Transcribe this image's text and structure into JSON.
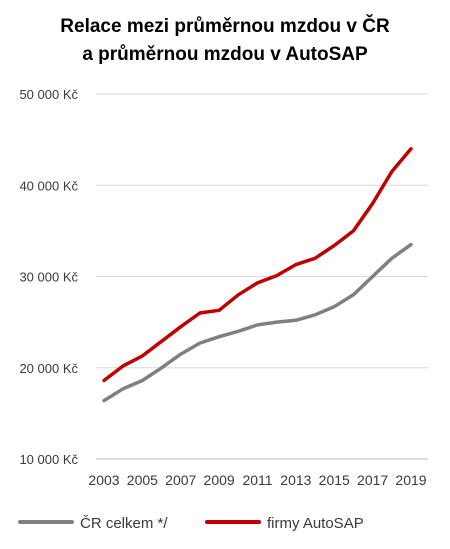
{
  "chart_data": {
    "type": "line",
    "title_lines": [
      "Relace mezi průměrnou mzdou v ČR",
      "a průměrnou mzdou v AutoSAP"
    ],
    "y_ticks": [
      {
        "value": 10000,
        "label": "10 000 Kč"
      },
      {
        "value": 20000,
        "label": "20 000 Kč"
      },
      {
        "value": 30000,
        "label": "30 000 Kč"
      },
      {
        "value": 40000,
        "label": "40 000 Kč"
      },
      {
        "value": 50000,
        "label": "50 000 Kč"
      }
    ],
    "ylim": [
      10000,
      50000
    ],
    "x_ticks": [
      {
        "value": 2003,
        "label": "2003"
      },
      {
        "value": 2005,
        "label": "2005"
      },
      {
        "value": 2007,
        "label": "2007"
      },
      {
        "value": 2009,
        "label": "2009"
      },
      {
        "value": 2011,
        "label": "2011"
      },
      {
        "value": 2013,
        "label": "2013"
      },
      {
        "value": 2015,
        "label": "2015"
      },
      {
        "value": 2017,
        "label": "2017"
      },
      {
        "value": 2019,
        "label": "2019"
      }
    ],
    "xlim": [
      2003,
      2019
    ],
    "grid": "horizontal",
    "legend_position": "bottom",
    "series": [
      {
        "name": "ČR celkem */",
        "color": "#808080",
        "x": [
          2003,
          2004,
          2005,
          2006,
          2007,
          2008,
          2009,
          2010,
          2011,
          2012,
          2013,
          2014,
          2015,
          2016,
          2017,
          2018,
          2019
        ],
        "values": [
          16400,
          17700,
          18600,
          20000,
          21500,
          22700,
          23400,
          24000,
          24700,
          25000,
          25200,
          25800,
          26700,
          28000,
          30000,
          32000,
          33500
        ]
      },
      {
        "name": "firmy AutoSAP",
        "color": "#c00000",
        "x": [
          2003,
          2004,
          2005,
          2006,
          2007,
          2008,
          2009,
          2010,
          2011,
          2012,
          2013,
          2014,
          2015,
          2016,
          2017,
          2018,
          2019
        ],
        "values": [
          18600,
          20200,
          21300,
          22900,
          24500,
          26000,
          26300,
          28000,
          29300,
          30100,
          31300,
          32000,
          33400,
          35000,
          38000,
          41500,
          44000
        ]
      }
    ]
  }
}
